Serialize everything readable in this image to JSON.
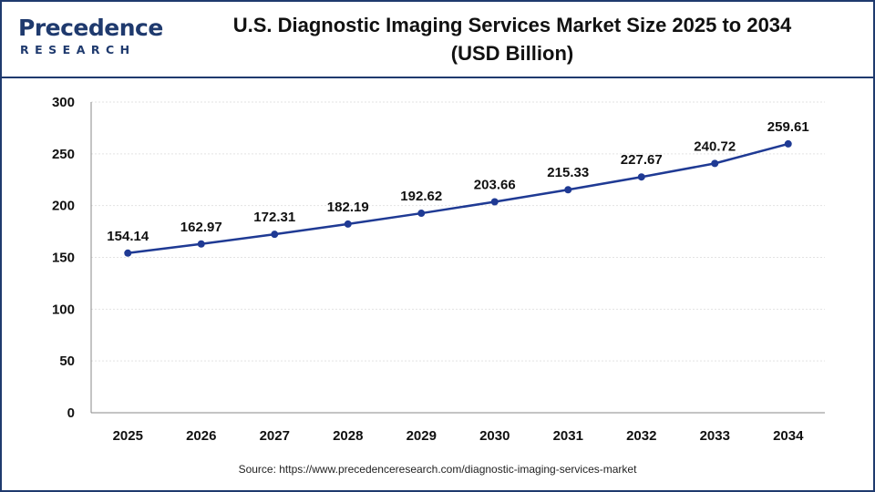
{
  "brand": {
    "name": "Precedence",
    "tagline": "RESEARCH",
    "accent_color": "#1f3a6e"
  },
  "header": {
    "title_line1": "U.S. Diagnostic Imaging Services Market Size 2025 to 2034",
    "title_line2": "(USD Billion)"
  },
  "footer": {
    "source": "Source: https://www.precedenceresearch.com/diagnostic-imaging-services-market"
  },
  "chart_data": {
    "type": "line",
    "title": "U.S. Diagnostic Imaging Services Market Size 2025 to 2034 (USD Billion)",
    "x": [
      "2025",
      "2026",
      "2027",
      "2028",
      "2029",
      "2030",
      "2031",
      "2032",
      "2033",
      "2034"
    ],
    "series": [
      {
        "values": [
          154.14,
          162.97,
          172.31,
          182.19,
          192.62,
          203.66,
          215.33,
          227.67,
          240.72,
          259.61
        ],
        "labels": [
          "154.14",
          "162.97",
          "172.31",
          "182.19",
          "192.62",
          "203.66",
          "215.33",
          "227.67",
          "240.72",
          "259.61"
        ],
        "color": "#1f3a94"
      }
    ],
    "ylim": [
      0,
      300
    ],
    "yticks": [
      "0",
      "50",
      "100",
      "150",
      "200",
      "250",
      "300"
    ],
    "grid": true,
    "legend": "none"
  }
}
